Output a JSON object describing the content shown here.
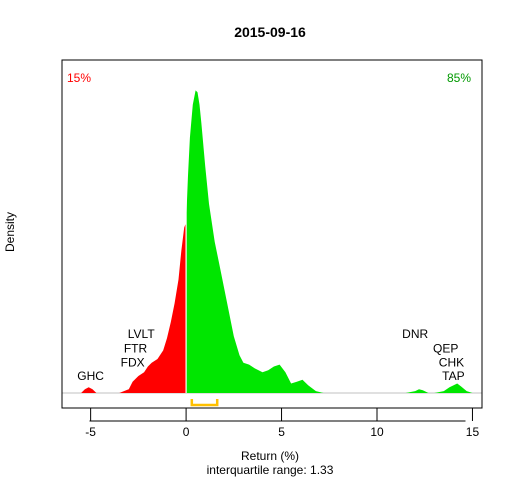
{
  "chart_data": {
    "type": "area",
    "title": "2015-09-16",
    "xlabel": "Return (%)",
    "ylabel": "Density",
    "subtitle": "interquartile range: 1.33",
    "xlim": [
      -6.5,
      15.5
    ],
    "ylim": [
      0,
      0.35
    ],
    "x_ticks": [
      -5,
      0,
      5,
      10,
      15
    ],
    "tick_labels": [
      "-5",
      "0",
      "5",
      "10",
      "15"
    ],
    "negative_share": "15%",
    "positive_share": "85%",
    "colors": {
      "negative": "#ff0000",
      "positive": "#00e600",
      "iqr": "#ffc000",
      "baseline": "#c0c0c0",
      "negative_label": "#ff0000",
      "positive_label": "#009900"
    },
    "iqr": [
      0.3,
      1.63
    ],
    "density": {
      "x": [
        -5.5,
        -5.3,
        -5.1,
        -4.9,
        -4.7,
        -4.0,
        -3.5,
        -3.0,
        -2.8,
        -2.5,
        -2.2,
        -2.0,
        -1.8,
        -1.5,
        -1.2,
        -1.0,
        -0.8,
        -0.6,
        -0.4,
        -0.25,
        -0.1,
        0.0,
        0.1,
        0.2,
        0.35,
        0.5,
        0.6,
        0.7,
        0.8,
        1.0,
        1.2,
        1.5,
        1.8,
        2.2,
        2.5,
        2.8,
        3.0,
        3.3,
        3.6,
        4.0,
        4.3,
        4.6,
        4.9,
        5.2,
        5.5,
        5.8,
        6.1,
        6.4,
        6.8,
        7.2,
        7.6,
        8.0,
        9.0,
        10.0,
        11.5,
        12.0,
        12.2,
        12.4,
        12.7,
        13.0,
        13.5,
        13.8,
        14.0,
        14.2,
        14.4,
        14.7,
        15.0
      ],
      "y": [
        0.0,
        0.004,
        0.006,
        0.004,
        0.0,
        0.0,
        0.0,
        0.004,
        0.012,
        0.018,
        0.022,
        0.028,
        0.032,
        0.036,
        0.045,
        0.058,
        0.075,
        0.095,
        0.12,
        0.15,
        0.175,
        0.18,
        0.23,
        0.27,
        0.305,
        0.32,
        0.318,
        0.305,
        0.285,
        0.24,
        0.2,
        0.16,
        0.13,
        0.09,
        0.06,
        0.04,
        0.032,
        0.03,
        0.026,
        0.022,
        0.024,
        0.028,
        0.03,
        0.022,
        0.01,
        0.012,
        0.014,
        0.008,
        0.002,
        0.0,
        0.0,
        0.0,
        0.0,
        0.0,
        0.0,
        0.002,
        0.004,
        0.003,
        0.0,
        0.0,
        0.002,
        0.006,
        0.008,
        0.01,
        0.007,
        0.002,
        0.0
      ]
    },
    "annotations": [
      {
        "text": "GHC",
        "x": -5.0,
        "y": 0.014,
        "color": "#000000"
      },
      {
        "text": "FDX",
        "x": -2.8,
        "y": 0.028,
        "color": "#000000"
      },
      {
        "text": "FTR",
        "x": -2.65,
        "y": 0.043,
        "color": "#000000"
      },
      {
        "text": "LVLT",
        "x": -2.35,
        "y": 0.058,
        "color": "#000000"
      },
      {
        "text": "DNR",
        "x": 12.0,
        "y": 0.058,
        "color": "#000000"
      },
      {
        "text": "QEP",
        "x": 13.6,
        "y": 0.043,
        "color": "#000000"
      },
      {
        "text": "CHK",
        "x": 13.9,
        "y": 0.028,
        "color": "#000000"
      },
      {
        "text": "TAP",
        "x": 14.0,
        "y": 0.014,
        "color": "#000000"
      }
    ]
  }
}
